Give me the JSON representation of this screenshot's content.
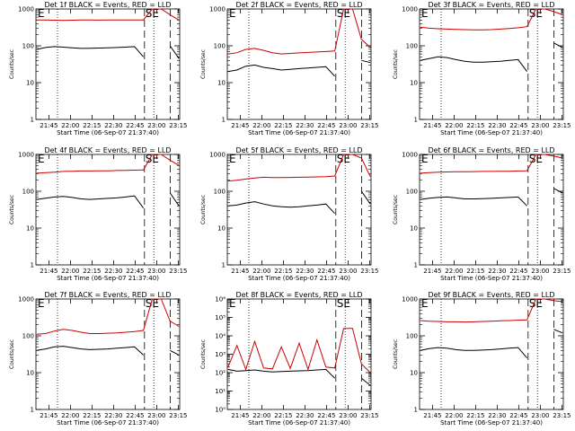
{
  "chart_data": {
    "panels": [
      {
        "type": "line",
        "title": "Det 1f BLACK = Events, RED = LLD",
        "xlabel": "Start Time (06-Sep-07 21:37:40)",
        "ylabel": "Counts/sec",
        "y_scale": "log",
        "ylim": [
          1,
          1000
        ],
        "yticks": [
          "1",
          "10",
          "100",
          "1000"
        ],
        "x_ticks": [
          "21:45",
          "22:00",
          "22:15",
          "22:30",
          "22:45",
          "23:00",
          "23:15"
        ],
        "markers": [
          "E",
          "SE"
        ],
        "series": [
          {
            "color": "#cc0000",
            "values": [
              500,
              500,
              495,
              490,
              495,
              500,
              500,
              498,
              500,
              502,
              500,
              500,
              505,
              1000,
              1000,
              700,
              500
            ]
          },
          {
            "color": "#000000",
            "values": [
              80,
              90,
              95,
              92,
              88,
              85,
              86,
              87,
              88,
              90,
              92,
              95,
              50,
              null,
              null,
              100,
              45
            ]
          }
        ]
      },
      {
        "type": "line",
        "title": "Det 2f BLACK = Events, RED = LLD",
        "xlabel": "Start Time (06-Sep-07 21:37:40)",
        "ylabel": "Counts/sec",
        "y_scale": "log",
        "ylim": [
          1,
          1000
        ],
        "yticks": [
          "1",
          "10",
          "100",
          "1000"
        ],
        "x_ticks": [
          "21:45",
          "22:00",
          "22:15",
          "22:30",
          "22:45",
          "23:00",
          "23:15"
        ],
        "markers": [
          "E",
          "SE"
        ],
        "series": [
          {
            "color": "#cc0000",
            "values": [
              60,
              65,
              80,
              85,
              75,
              65,
              60,
              62,
              64,
              66,
              68,
              70,
              72,
              1000,
              1000,
              150,
              90
            ]
          },
          {
            "color": "#000000",
            "values": [
              20,
              22,
              28,
              30,
              26,
              24,
              22,
              23,
              24,
              25,
              26,
              27,
              15,
              null,
              null,
              40,
              35
            ]
          }
        ]
      },
      {
        "type": "line",
        "title": "Det 3f BLACK = Events, RED = LLD",
        "xlabel": "Start Time (06-Sep-07 21:37:40)",
        "ylabel": "Counts/sec",
        "y_scale": "log",
        "ylim": [
          1,
          1000
        ],
        "yticks": [
          "1",
          "10",
          "100",
          "1000"
        ],
        "x_ticks": [
          "21:45",
          "22:00",
          "22:15",
          "22:30",
          "22:45",
          "23:00",
          "23:15"
        ],
        "markers": [
          "E",
          "SE"
        ],
        "series": [
          {
            "color": "#cc0000",
            "values": [
              320,
              300,
              290,
              285,
              280,
              275,
              272,
              270,
              275,
              285,
              295,
              310,
              330,
              1000,
              1000,
              850,
              700
            ]
          },
          {
            "color": "#000000",
            "values": [
              40,
              45,
              50,
              48,
              42,
              38,
              36,
              36,
              37,
              38,
              40,
              42,
              20,
              null,
              null,
              120,
              90
            ]
          }
        ]
      },
      {
        "type": "line",
        "title": "Det 4f BLACK = Events, RED = LLD",
        "xlabel": "Start Time (06-Sep-07 21:37:40)",
        "ylabel": "Counts/sec",
        "y_scale": "log",
        "ylim": [
          1,
          1000
        ],
        "yticks": [
          "1",
          "10",
          "100",
          "1000"
        ],
        "x_ticks": [
          "21:45",
          "22:00",
          "22:15",
          "22:30",
          "22:45",
          "23:00",
          "23:15"
        ],
        "markers": [
          "E",
          "SE"
        ],
        "series": [
          {
            "color": "#cc0000",
            "values": [
              310,
              320,
              330,
              345,
              350,
              355,
              355,
              360,
              360,
              365,
              370,
              375,
              380,
              1000,
              1000,
              700,
              500
            ]
          },
          {
            "color": "#000000",
            "values": [
              60,
              65,
              70,
              72,
              68,
              62,
              60,
              62,
              64,
              66,
              70,
              75,
              35,
              null,
              null,
              90,
              40
            ]
          }
        ]
      },
      {
        "type": "line",
        "title": "Det 5f BLACK = Events, RED = LLD",
        "xlabel": "Start Time (06-Sep-07 21:37:40)",
        "ylabel": "Counts/sec",
        "y_scale": "log",
        "ylim": [
          1,
          1000
        ],
        "yticks": [
          "1",
          "10",
          "100",
          "1000"
        ],
        "x_ticks": [
          "21:45",
          "22:00",
          "22:15",
          "22:30",
          "22:45",
          "23:00",
          "23:15"
        ],
        "markers": [
          "E",
          "SE"
        ],
        "series": [
          {
            "color": "#cc0000",
            "values": [
              190,
              200,
              215,
              230,
              240,
              235,
              235,
              238,
              240,
              242,
              245,
              250,
              260,
              1000,
              1000,
              800,
              250
            ]
          },
          {
            "color": "#000000",
            "values": [
              40,
              42,
              48,
              52,
              45,
              40,
              38,
              37,
              38,
              40,
              42,
              45,
              25,
              null,
              null,
              100,
              45
            ]
          }
        ]
      },
      {
        "type": "line",
        "title": "Det 6f BLACK = Events, RED = LLD",
        "xlabel": "Start Time (06-Sep-07 21:37:40)",
        "ylabel": "Counts/sec",
        "y_scale": "log",
        "ylim": [
          1,
          1000
        ],
        "yticks": [
          "1",
          "10",
          "100",
          "1000"
        ],
        "x_ticks": [
          "21:45",
          "22:00",
          "22:15",
          "22:30",
          "22:45",
          "23:00",
          "23:15"
        ],
        "markers": [
          "E",
          "SE"
        ],
        "series": [
          {
            "color": "#cc0000",
            "values": [
              310,
              320,
              330,
              335,
              340,
              340,
              342,
              345,
              345,
              348,
              350,
              355,
              360,
              1000,
              1000,
              900,
              800
            ]
          },
          {
            "color": "#000000",
            "values": [
              60,
              65,
              68,
              70,
              66,
              62,
              62,
              63,
              64,
              66,
              68,
              70,
              40,
              null,
              null,
              120,
              90
            ]
          }
        ]
      },
      {
        "type": "line",
        "title": "Det 7f BLACK = Events, RED = LLD",
        "xlabel": "Start Time (06-Sep-07 21:37:40)",
        "ylabel": "Counts/sec",
        "y_scale": "log",
        "ylim": [
          1,
          1000
        ],
        "yticks": [
          "1",
          "10",
          "100",
          "1000"
        ],
        "x_ticks": [
          "21:45",
          "22:00",
          "22:15",
          "22:30",
          "22:45",
          "23:00",
          "23:15"
        ],
        "markers": [
          "E",
          "SE"
        ],
        "series": [
          {
            "color": "#cc0000",
            "values": [
              110,
              115,
              135,
              150,
              140,
              125,
              115,
              115,
              118,
              120,
              125,
              130,
              140,
              1000,
              1000,
              250,
              180
            ]
          },
          {
            "color": "#000000",
            "values": [
              40,
              44,
              50,
              52,
              48,
              44,
              42,
              43,
              44,
              46,
              48,
              50,
              30,
              null,
              null,
              40,
              30
            ]
          }
        ]
      },
      {
        "type": "line",
        "title": "Det 8f BLACK = Events, RED = LLD",
        "xlabel": "Start Time (06-Sep-07 21:37:40)",
        "ylabel": "Counts/sec",
        "y_scale": "log",
        "ylim": [
          1,
          1000000
        ],
        "yticks": [
          "10⁰",
          "10¹",
          "10²",
          "10³",
          "10⁴",
          "10⁵",
          "10⁶"
        ],
        "x_ticks": [
          "21:45",
          "22:00",
          "22:15",
          "22:30",
          "22:45",
          "23:00",
          "23:15"
        ],
        "markers": [
          "E",
          "SE"
        ],
        "series": [
          {
            "color": "#cc0000",
            "values": [
              200,
              3000,
              150,
              5000,
              180,
              160,
              2500,
              170,
              4000,
              150,
              6000,
              200,
              180,
              25000,
              25000,
              300,
              100
            ]
          },
          {
            "color": "#000000",
            "values": [
              150,
              120,
              130,
              140,
              120,
              110,
              115,
              120,
              125,
              130,
              140,
              150,
              50,
              null,
              null,
              50,
              20
            ]
          }
        ]
      },
      {
        "type": "line",
        "title": "Det 9f BLACK = Events, RED = LLD",
        "xlabel": "Start Time (06-Sep-07 21:37:40)",
        "ylabel": "Counts/sec",
        "y_scale": "log",
        "ylim": [
          1,
          1000
        ],
        "yticks": [
          "1",
          "10",
          "100",
          "1000"
        ],
        "x_ticks": [
          "21:45",
          "22:00",
          "22:15",
          "22:30",
          "22:45",
          "23:00",
          "23:15"
        ],
        "markers": [
          "E",
          "SE"
        ],
        "series": [
          {
            "color": "#cc0000",
            "values": [
              260,
              250,
              245,
              240,
              240,
              238,
              240,
              245,
              250,
              255,
              260,
              265,
              270,
              1000,
              1000,
              900,
              850
            ]
          },
          {
            "color": "#000000",
            "values": [
              40,
              45,
              48,
              46,
              42,
              40,
              40,
              41,
              42,
              44,
              46,
              48,
              25,
              null,
              null,
              150,
              120
            ]
          }
        ]
      }
    ]
  }
}
